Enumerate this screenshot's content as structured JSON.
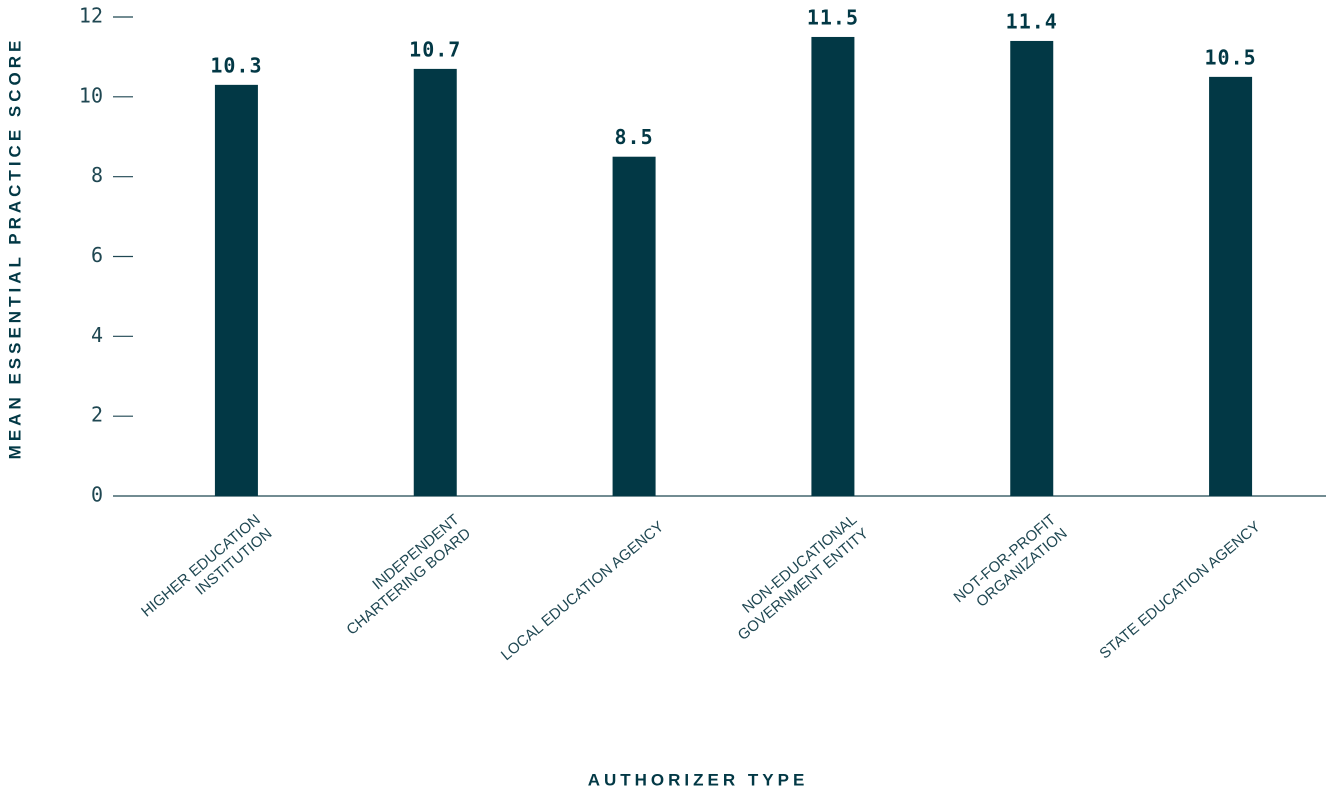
{
  "chart_data": {
    "type": "bar",
    "y_label": "MEAN ESSENTIAL PRACTICE SCORE",
    "x_label": "AUTHORIZER TYPE",
    "categories": [
      [
        "HIGHER EDUCATION",
        "INSTITUTION"
      ],
      [
        "INDEPENDENT",
        "CHARTERING BOARD"
      ],
      [
        "LOCAL EDUCATION AGENCY"
      ],
      [
        "NON-EDUCATIONAL",
        "GOVERNMENT ENTITY"
      ],
      [
        "NOT-FOR-PROFIT",
        "ORGANIZATION"
      ],
      [
        "STATE EDUCATION AGENCY"
      ]
    ],
    "values": [
      10.3,
      10.7,
      8.5,
      11.5,
      11.4,
      10.5
    ],
    "color": "#023845",
    "ylim": [
      0,
      12
    ],
    "yticks": [
      0,
      2,
      4,
      6,
      8,
      10,
      12
    ],
    "grid": false
  }
}
